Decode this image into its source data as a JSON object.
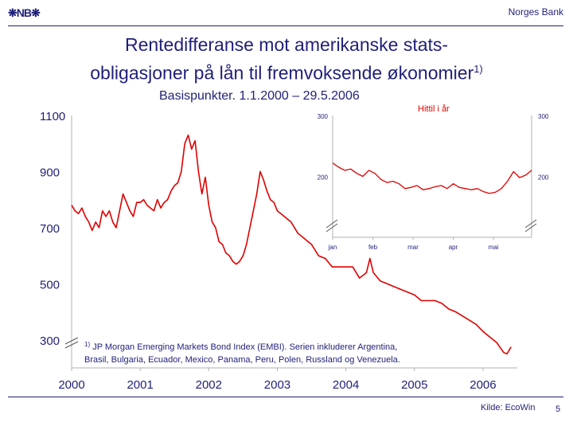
{
  "header": {
    "logo_text": "NB",
    "bank_name": "Norges Bank"
  },
  "title": {
    "line1": "Rentedifferanse mot amerikanske stats-",
    "line2": "obligasjoner på lån til fremvoksende økonomier",
    "line2_sup": "1)",
    "subtitle": "Basispunkter. 1.1.2000 – 29.5.2006"
  },
  "footnote": {
    "marker": "1)",
    "line1": "JP Morgan Emerging Markets Bond Index (EMBI). Serien inkluderer Argentina,",
    "line2": "Brasil, Bulgaria, Ecuador, Mexico, Panama, Peru, Polen, Russland og Venezuela."
  },
  "source": "Kilde: EcoWin",
  "page_number": "5",
  "colors": {
    "series": "#e00000",
    "text": "#1f1f7a"
  },
  "chart_data": [
    {
      "type": "line",
      "title": "",
      "ylim": [
        200,
        1100
      ],
      "y_ticks": [
        "1100",
        "900",
        "700",
        "500",
        "300"
      ],
      "y_tick_values": [
        1100,
        900,
        700,
        500,
        300
      ],
      "x_ticks": [
        "2000",
        "2001",
        "2002",
        "2003",
        "2004",
        "2005",
        "2006"
      ],
      "x_tick_values": [
        2000,
        2001,
        2002,
        2003,
        2004,
        2005,
        2006
      ],
      "xlim": [
        2000,
        2006.5
      ],
      "axis_break": true,
      "series": [
        {
          "x": [
            2000.0,
            2000.05,
            2000.1,
            2000.15,
            2000.2,
            2000.25,
            2000.3,
            2000.35,
            2000.4,
            2000.45,
            2000.5,
            2000.55,
            2000.6,
            2000.65,
            2000.7,
            2000.75,
            2000.8,
            2000.85,
            2000.9,
            2000.95,
            2001.0,
            2001.05,
            2001.1,
            2001.15,
            2001.2,
            2001.25,
            2001.3,
            2001.35,
            2001.4,
            2001.45,
            2001.5,
            2001.55,
            2001.6,
            2001.65,
            2001.7,
            2001.75,
            2001.8,
            2001.85,
            2001.9,
            2001.95,
            2002.0,
            2002.05,
            2002.1,
            2002.15,
            2002.2,
            2002.25,
            2002.3,
            2002.35,
            2002.4,
            2002.45,
            2002.5,
            2002.55,
            2002.6,
            2002.65,
            2002.7,
            2002.75,
            2002.8,
            2002.85,
            2002.9,
            2002.95,
            2003.0,
            2003.1,
            2003.2,
            2003.3,
            2003.4,
            2003.5,
            2003.6,
            2003.7,
            2003.8,
            2003.9,
            2004.0,
            2004.1,
            2004.2,
            2004.3,
            2004.35,
            2004.4,
            2004.5,
            2004.6,
            2004.7,
            2004.8,
            2004.9,
            2005.0,
            2005.1,
            2005.2,
            2005.3,
            2005.4,
            2005.5,
            2005.6,
            2005.7,
            2005.8,
            2005.9,
            2006.0,
            2006.1,
            2006.2,
            2006.3,
            2006.35,
            2006.41
          ],
          "y": [
            780,
            760,
            750,
            770,
            740,
            720,
            690,
            720,
            700,
            760,
            740,
            760,
            720,
            700,
            760,
            820,
            790,
            760,
            740,
            790,
            790,
            800,
            780,
            770,
            760,
            800,
            770,
            790,
            800,
            830,
            850,
            860,
            900,
            1000,
            1030,
            980,
            1010,
            900,
            820,
            880,
            780,
            720,
            700,
            650,
            640,
            610,
            600,
            580,
            570,
            580,
            600,
            640,
            700,
            760,
            820,
            900,
            870,
            830,
            800,
            790,
            760,
            740,
            720,
            680,
            660,
            640,
            600,
            590,
            560,
            560,
            560,
            560,
            520,
            540,
            590,
            540,
            510,
            500,
            490,
            480,
            470,
            460,
            440,
            440,
            440,
            430,
            410,
            400,
            385,
            370,
            355,
            330,
            310,
            290,
            255,
            250,
            275
          ]
        }
      ]
    },
    {
      "type": "line",
      "title": "Hittil i år",
      "ylim": [
        100,
        300
      ],
      "y_ticks_left": [
        "300",
        "200"
      ],
      "y_ticks_right": [
        "300",
        "200"
      ],
      "y_tick_values": [
        300,
        200
      ],
      "x_ticks": [
        "jan",
        "feb",
        "mar",
        "apr",
        "mai"
      ],
      "x_tick_values": [
        0,
        1,
        2,
        3,
        4
      ],
      "xlim": [
        0,
        4.95
      ],
      "axis_break": true,
      "series": [
        {
          "x": [
            0.0,
            0.15,
            0.3,
            0.45,
            0.6,
            0.75,
            0.9,
            1.05,
            1.2,
            1.35,
            1.5,
            1.65,
            1.8,
            1.95,
            2.1,
            2.25,
            2.4,
            2.55,
            2.7,
            2.85,
            3.0,
            3.15,
            3.3,
            3.45,
            3.6,
            3.75,
            3.9,
            4.05,
            4.2,
            4.35,
            4.5,
            4.65,
            4.8,
            4.95
          ],
          "y": [
            222,
            215,
            210,
            212,
            205,
            200,
            210,
            205,
            195,
            190,
            192,
            188,
            180,
            182,
            185,
            178,
            180,
            183,
            185,
            180,
            188,
            182,
            180,
            178,
            180,
            175,
            172,
            174,
            180,
            192,
            208,
            198,
            202,
            210
          ]
        }
      ]
    }
  ]
}
